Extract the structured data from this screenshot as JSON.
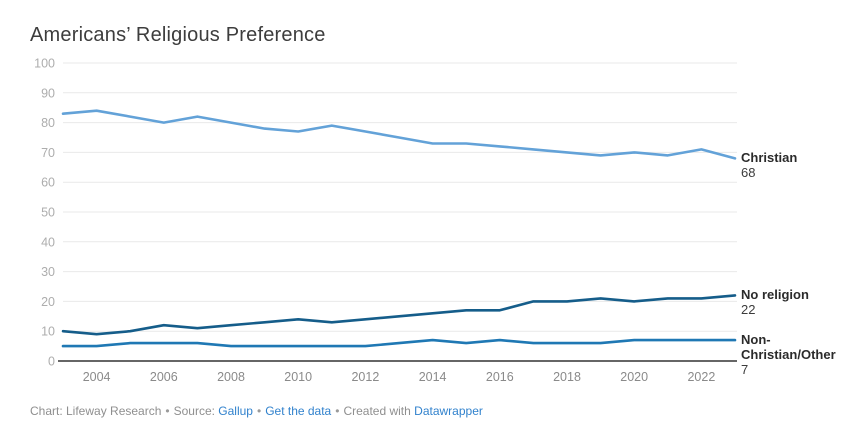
{
  "title": "Americans’ Religious Preference",
  "chart_data": {
    "type": "line",
    "x": [
      2003,
      2004,
      2005,
      2006,
      2007,
      2008,
      2009,
      2010,
      2011,
      2012,
      2013,
      2014,
      2015,
      2016,
      2017,
      2018,
      2019,
      2020,
      2021,
      2022,
      2023
    ],
    "series": [
      {
        "name": "Christian",
        "name_lines": [
          "Christian"
        ],
        "color": "#63a2d8",
        "end_value": 68,
        "values": [
          83,
          84,
          82,
          80,
          82,
          80,
          78,
          77,
          79,
          77,
          75,
          73,
          73,
          72,
          71,
          70,
          69,
          70,
          69,
          71,
          68
        ]
      },
      {
        "name": "No religion",
        "name_lines": [
          "No religion"
        ],
        "color": "#155d8a",
        "end_value": 22,
        "values": [
          10,
          9,
          10,
          12,
          11,
          12,
          13,
          14,
          13,
          14,
          15,
          16,
          17,
          17,
          20,
          20,
          21,
          20,
          21,
          21,
          22
        ]
      },
      {
        "name": "Non-Christian/Other",
        "name_lines": [
          "Non-",
          "Christian/Other"
        ],
        "color": "#1f78b4",
        "end_value": 7,
        "values": [
          5,
          5,
          6,
          6,
          6,
          5,
          5,
          5,
          5,
          5,
          6,
          7,
          6,
          7,
          6,
          6,
          6,
          7,
          7,
          7,
          7
        ]
      }
    ],
    "ylim": [
      0,
      100
    ],
    "yticks": [
      0,
      10,
      20,
      30,
      40,
      50,
      60,
      70,
      80,
      90,
      100
    ],
    "xticks": [
      2004,
      2006,
      2008,
      2010,
      2012,
      2014,
      2016,
      2018,
      2020,
      2022
    ],
    "grid": "horizontal",
    "legend_position": "right-edge-labels",
    "colors": {
      "gridline": "#e9e9e9",
      "axis": "#333333",
      "ytick_label": "#adadad",
      "xtick_label": "#8a8a8a"
    }
  },
  "footer": {
    "chart_credit": "Chart: Lifeway Research",
    "separator": "•",
    "source_label": "Source:",
    "source_link": "Gallup",
    "get_data_link": "Get the data",
    "created_with_label": "Created with",
    "platform_link": "Datawrapper"
  }
}
